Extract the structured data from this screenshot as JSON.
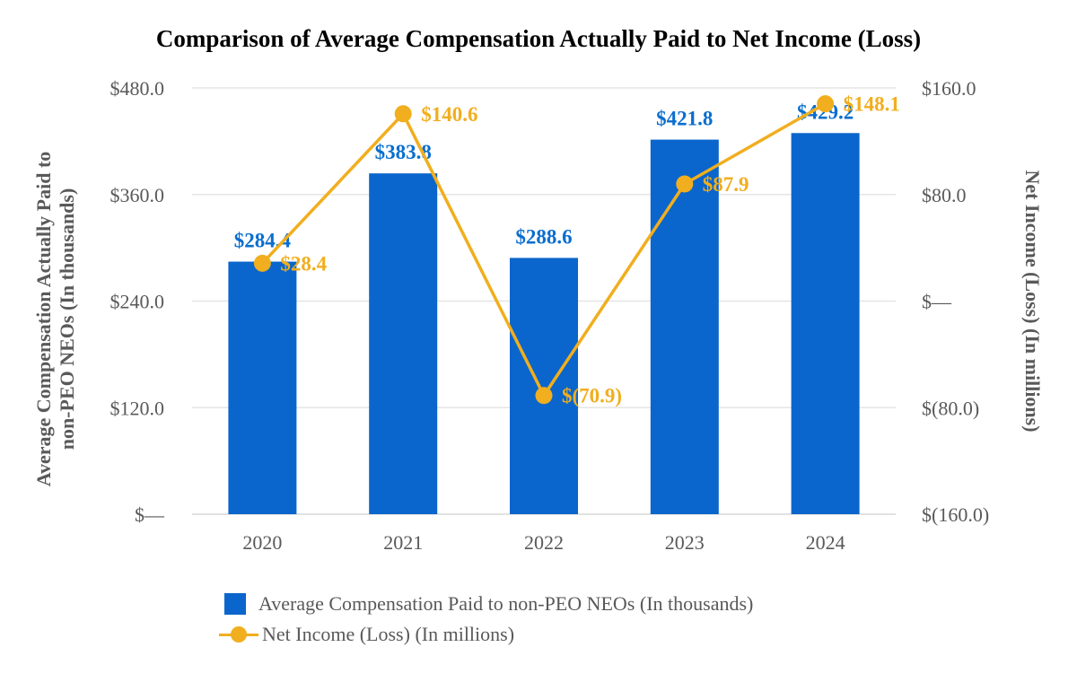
{
  "chart_data": {
    "type": "bar",
    "title": "Comparison of Average Compensation Actually Paid to Net Income (Loss)",
    "categories": [
      "2020",
      "2021",
      "2022",
      "2023",
      "2024"
    ],
    "series": [
      {
        "name": "Average Compensation Paid to non-PEO NEOs (In thousands)",
        "type": "bar",
        "axis": "left",
        "values": [
          284.4,
          383.8,
          288.6,
          421.8,
          429.2
        ],
        "labels": [
          "$284.4",
          "$383.8",
          "$288.6",
          "$421.8",
          "$429.2"
        ],
        "color": "#0A66CC"
      },
      {
        "name": "Net Income (Loss) (In millions)",
        "type": "line",
        "axis": "right",
        "values": [
          28.4,
          140.6,
          -70.9,
          87.9,
          148.1
        ],
        "labels": [
          "$28.4",
          "$140.6",
          "$(70.9)",
          "$87.9",
          "$148.1"
        ],
        "color": "#F1AE1E"
      }
    ],
    "y_left": {
      "label": "Average Compensation Actually Paid to non-PEO NEOs (In thousands)",
      "label_lines": [
        "Average Compensation Actually Paid to",
        "non-PEO NEOs (In thousands)"
      ],
      "ylim": [
        0,
        480
      ],
      "ticks": [
        0,
        120,
        240,
        360,
        480
      ],
      "tick_labels": [
        "$—",
        "$120.0",
        "$240.0",
        "$360.0",
        "$480.0"
      ]
    },
    "y_right": {
      "label": "Net Income (Loss) (In millions)",
      "ylim": [
        -160,
        160
      ],
      "ticks": [
        -160,
        -80,
        0,
        80,
        160
      ],
      "tick_labels": [
        "$(160.0)",
        "$(80.0)",
        "$—",
        "$80.0",
        "$160.0"
      ]
    },
    "grid": true,
    "legend_position": "bottom"
  }
}
